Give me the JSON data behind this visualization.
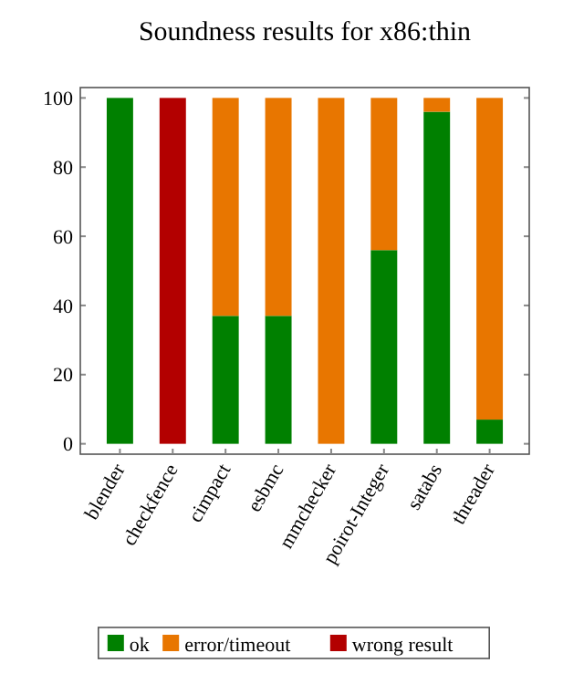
{
  "chart_data": {
    "type": "bar",
    "title": "Soundness results for x86:thin",
    "stacked": true,
    "categories": [
      "blender",
      "checkfence",
      "cimpact",
      "esbmc",
      "mmchecker",
      "poirot-Integer",
      "satabs",
      "threader"
    ],
    "series": [
      {
        "name": "ok",
        "color": "#008000",
        "values": [
          100,
          0,
          37,
          37,
          0,
          56,
          96,
          7
        ]
      },
      {
        "name": "error/timeout",
        "color": "#e87600",
        "values": [
          0,
          0,
          63,
          63,
          100,
          44,
          4,
          93
        ]
      },
      {
        "name": "wrong result",
        "color": "#b30000",
        "values": [
          0,
          100,
          0,
          0,
          0,
          0,
          0,
          0
        ]
      }
    ],
    "ylim": [
      -3,
      103
    ],
    "yticks": [
      0,
      20,
      40,
      60,
      80,
      100
    ],
    "grid": false,
    "legend": "bottom"
  }
}
